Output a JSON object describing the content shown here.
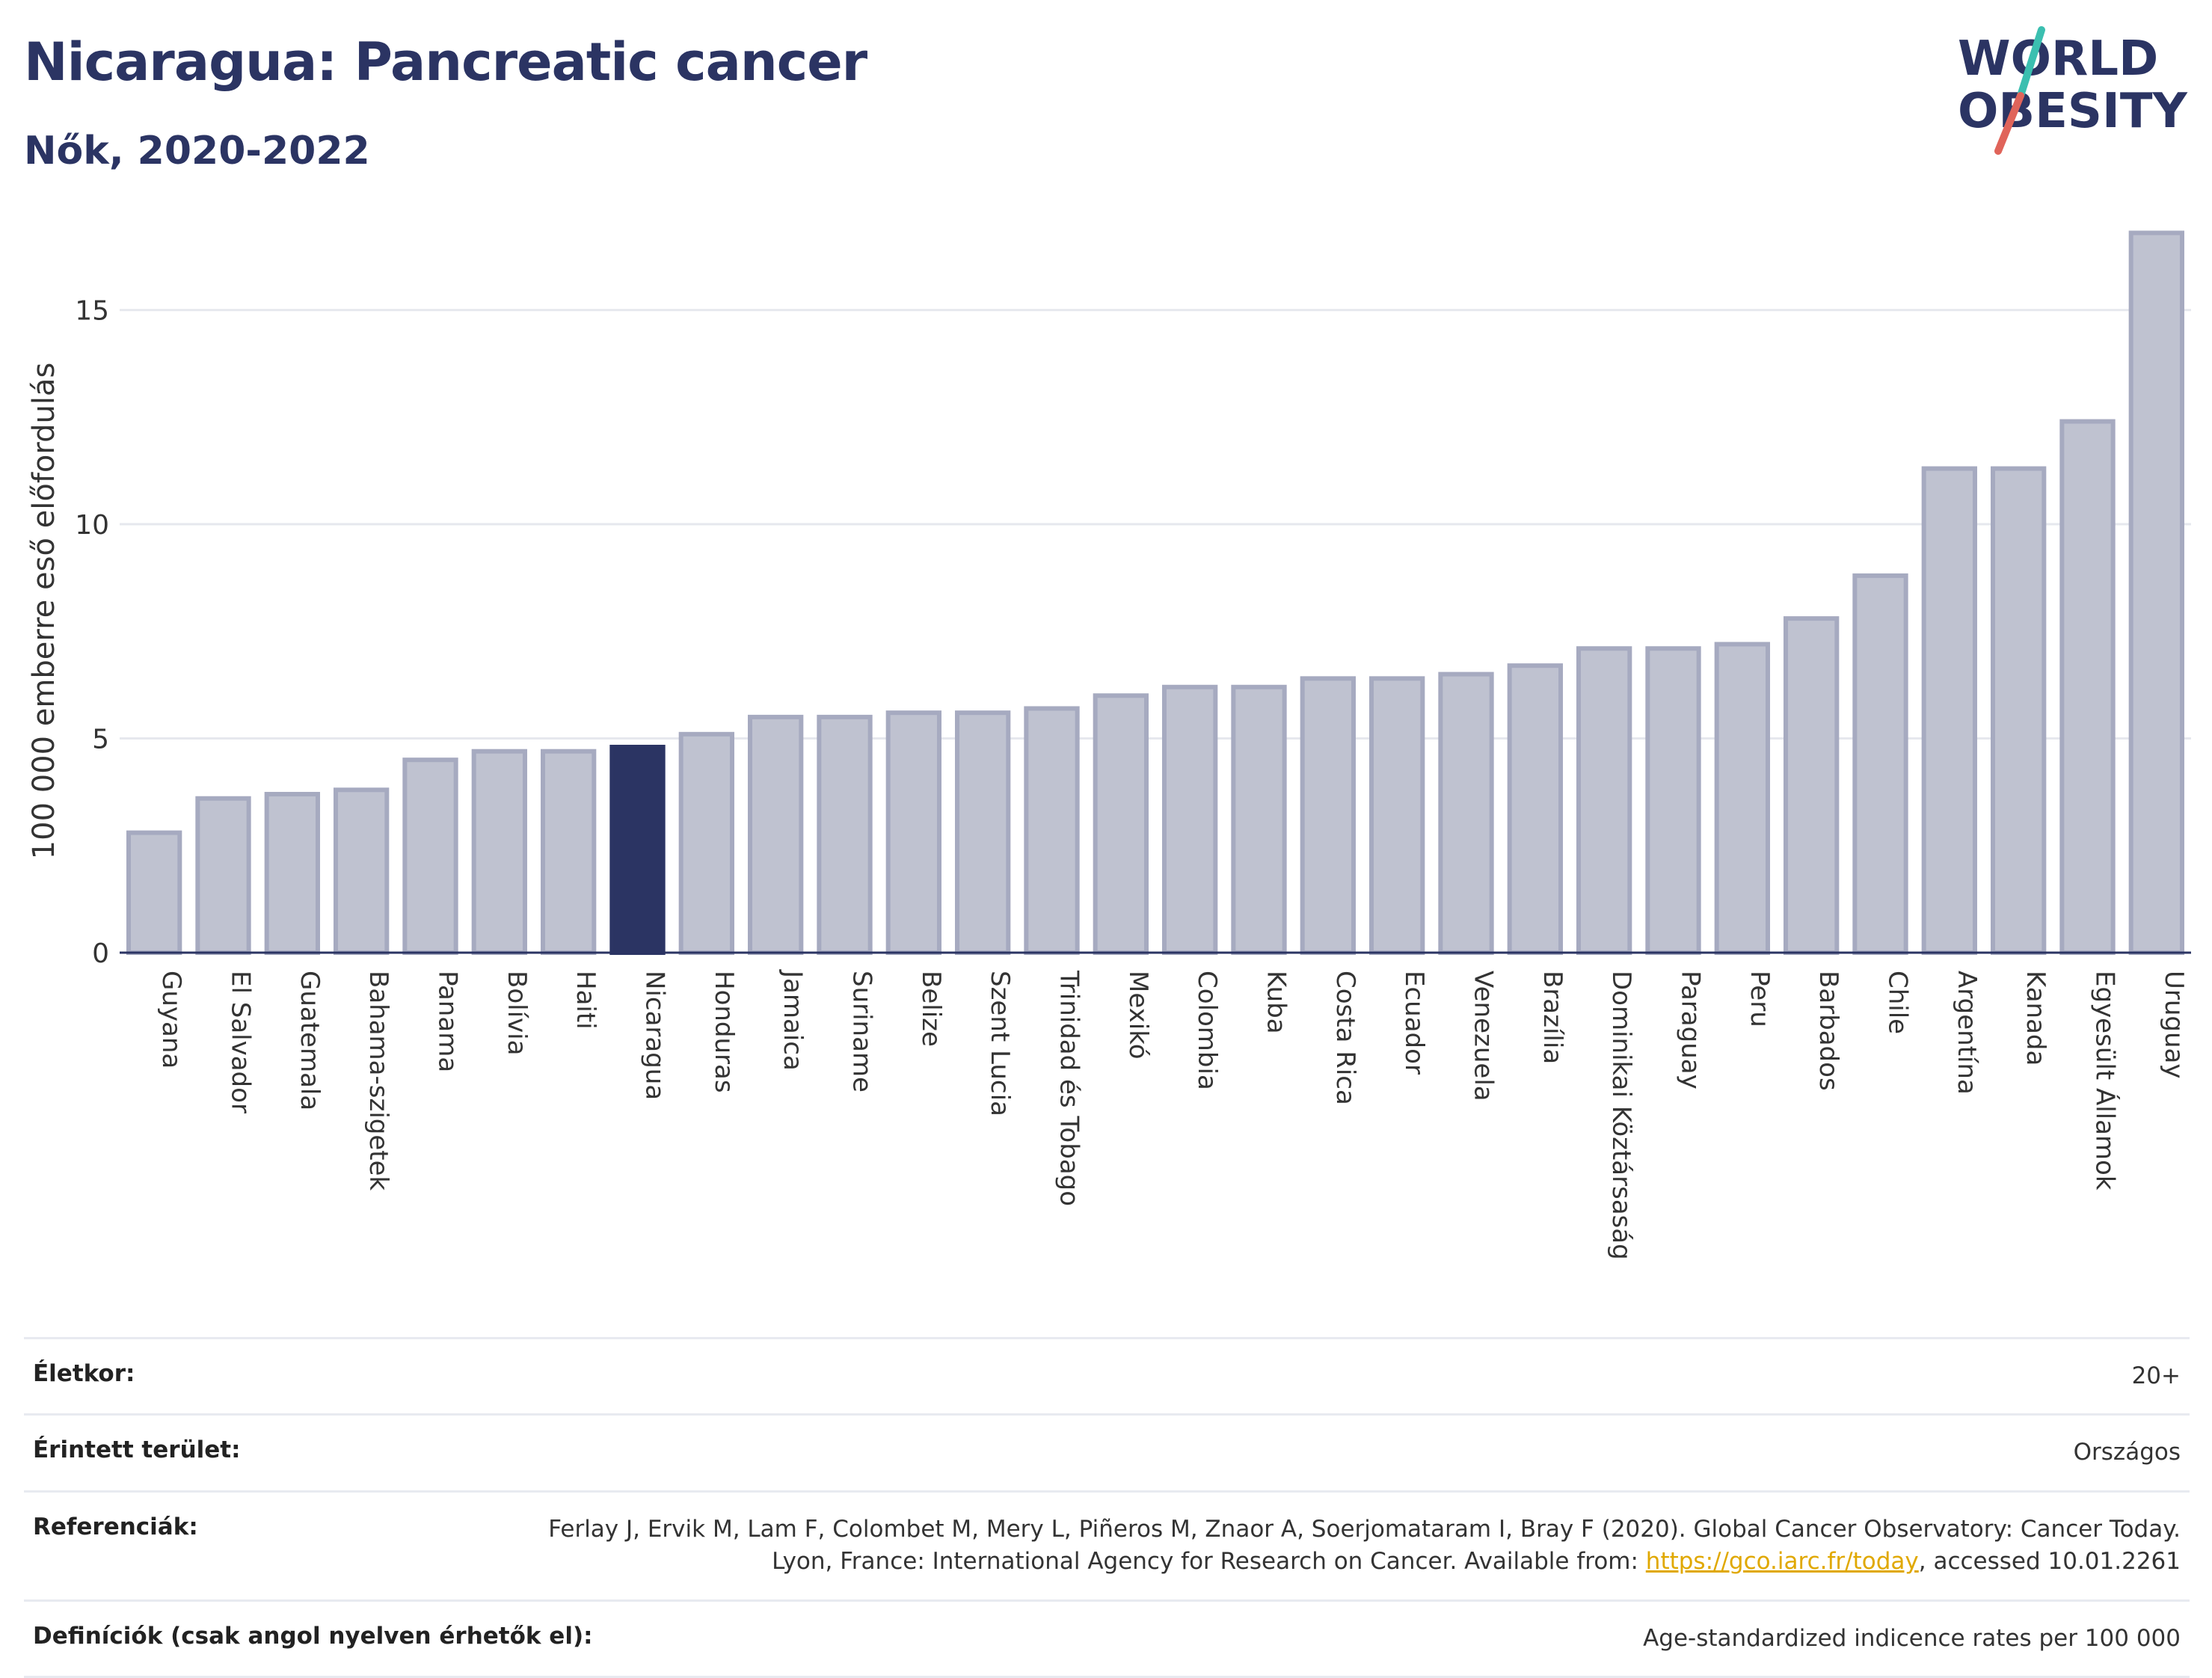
{
  "header": {
    "title": "Nicaragua: Pancreatic cancer",
    "subtitle": "Nők, 2020-2022"
  },
  "logo": {
    "line1": "WORLD",
    "line2": "OBESITY"
  },
  "colors": {
    "bar": "#bfc2d0",
    "bar_border": "#a6aac0",
    "highlight": "#2b3463",
    "grid": "#e6e8ee",
    "axis": "#2b3463",
    "logo_slash_top": "#3bbfb0",
    "logo_slash_bottom": "#e0645a"
  },
  "chart_data": {
    "type": "bar",
    "title": "Nicaragua: Pancreatic cancer",
    "subtitle": "Nők, 2020-2022",
    "ylabel": "100 000 emberre eső előfordulás",
    "xlabel": "",
    "ylim": [
      0,
      17
    ],
    "yticks": [
      0,
      5,
      10,
      15
    ],
    "highlight": "Nicaragua",
    "grid": true,
    "categories": [
      "Guyana",
      "El Salvador",
      "Guatemala",
      "Bahama-szigetek",
      "Panama",
      "Bolívia",
      "Haiti",
      "Nicaragua",
      "Honduras",
      "Jamaica",
      "Suriname",
      "Belize",
      "Szent Lucia",
      "Trinidad és Tobago",
      "Mexikó",
      "Colombia",
      "Kuba",
      "Costa Rica",
      "Ecuador",
      "Venezuela",
      "Brazília",
      "Dominikai Köztársaság",
      "Paraguay",
      "Peru",
      "Barbados",
      "Chile",
      "Argentína",
      "Kanada",
      "Egyesült Államok",
      "Uruguay"
    ],
    "values": [
      2.8,
      3.6,
      3.7,
      3.8,
      4.5,
      4.7,
      4.7,
      4.8,
      5.1,
      5.5,
      5.5,
      5.6,
      5.6,
      5.7,
      6.0,
      6.2,
      6.2,
      6.4,
      6.4,
      6.5,
      6.7,
      7.1,
      7.1,
      7.2,
      7.8,
      8.8,
      11.3,
      11.3,
      12.4,
      16.8
    ]
  },
  "info": {
    "age_label": "Életkor:",
    "age_value": "20+",
    "area_label": "Érintett terület:",
    "area_value": "Országos",
    "ref_label": "Referenciák:",
    "ref_text_1": "Ferlay J, Ervik M, Lam F, Colombet M, Mery L, Piñeros M, Znaor A, Soerjomataram I, Bray F (2020). Global Cancer Observatory: Cancer Today. Lyon, France: International Agency for Research on Cancer. Available from: ",
    "ref_link": "https://gco.iarc.fr/today",
    "ref_text_2": ", accessed 10.01.2261",
    "def_label": "Definíciók (csak angol nyelven érhetők el):",
    "def_value": "Age-standardized indicence rates per 100 000"
  }
}
